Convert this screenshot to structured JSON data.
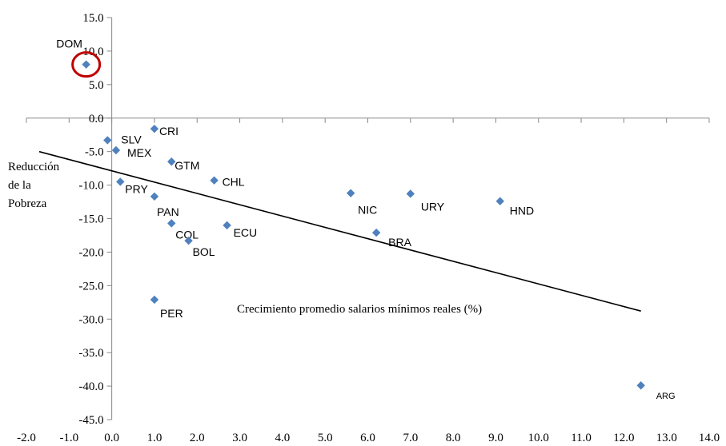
{
  "chart_data": {
    "type": "scatter",
    "title": "",
    "xlabel": "Crecimiento  promedio salarios mínimos reales  (%)",
    "ylabel_lines": [
      "Reducción",
      "de la",
      "Pobreza"
    ],
    "xlim": [
      -2.0,
      14.0
    ],
    "ylim": [
      -45.0,
      15.0
    ],
    "x_ticks": [
      "-2.0",
      "-1.0",
      "0.0",
      "1.0",
      "2.0",
      "3.0",
      "4.0",
      "5.0",
      "6.0",
      "7.0",
      "8.0",
      "9.0",
      "10.0",
      "11.0",
      "12.0",
      "13.0",
      "14.0"
    ],
    "y_ticks": [
      "15.0",
      "10.0",
      "5.0",
      "0.0",
      "-5.0",
      "-10.0",
      "-15.0",
      "-20.0",
      "-25.0",
      "-30.0",
      "-35.0",
      "-40.0",
      "-45.0"
    ],
    "grid": false,
    "legend": "none",
    "marker_color": "#4F81BD",
    "trendline": {
      "x": [
        -1.7,
        12.4
      ],
      "y": [
        -5.0,
        -28.8
      ],
      "color": "#000000"
    },
    "highlight": {
      "label": "DOM",
      "color": "#C00000"
    },
    "points": [
      {
        "label": "DOM",
        "x": -0.6,
        "y": 8.0
      },
      {
        "label": "SLV",
        "x": -0.1,
        "y": -3.3
      },
      {
        "label": "CRI",
        "x": 1.0,
        "y": -1.6
      },
      {
        "label": "MEX",
        "x": 0.1,
        "y": -4.8
      },
      {
        "label": "GTM",
        "x": 1.4,
        "y": -6.5
      },
      {
        "label": "CHL",
        "x": 2.4,
        "y": -9.3
      },
      {
        "label": "PRY",
        "x": 0.2,
        "y": -9.5
      },
      {
        "label": "PAN",
        "x": 1.0,
        "y": -11.7
      },
      {
        "label": "NIC",
        "x": 5.6,
        "y": -11.2
      },
      {
        "label": "URY",
        "x": 7.0,
        "y": -11.3
      },
      {
        "label": "HND",
        "x": 9.1,
        "y": -12.4
      },
      {
        "label": "COL",
        "x": 1.4,
        "y": -15.7
      },
      {
        "label": "ECU",
        "x": 2.7,
        "y": -16.0
      },
      {
        "label": "BRA",
        "x": 6.2,
        "y": -17.1
      },
      {
        "label": "BOL",
        "x": 1.8,
        "y": -18.3
      },
      {
        "label": "PER",
        "x": 1.0,
        "y": -27.1
      },
      {
        "label": "ARG",
        "x": 12.4,
        "y": -39.9
      }
    ]
  }
}
